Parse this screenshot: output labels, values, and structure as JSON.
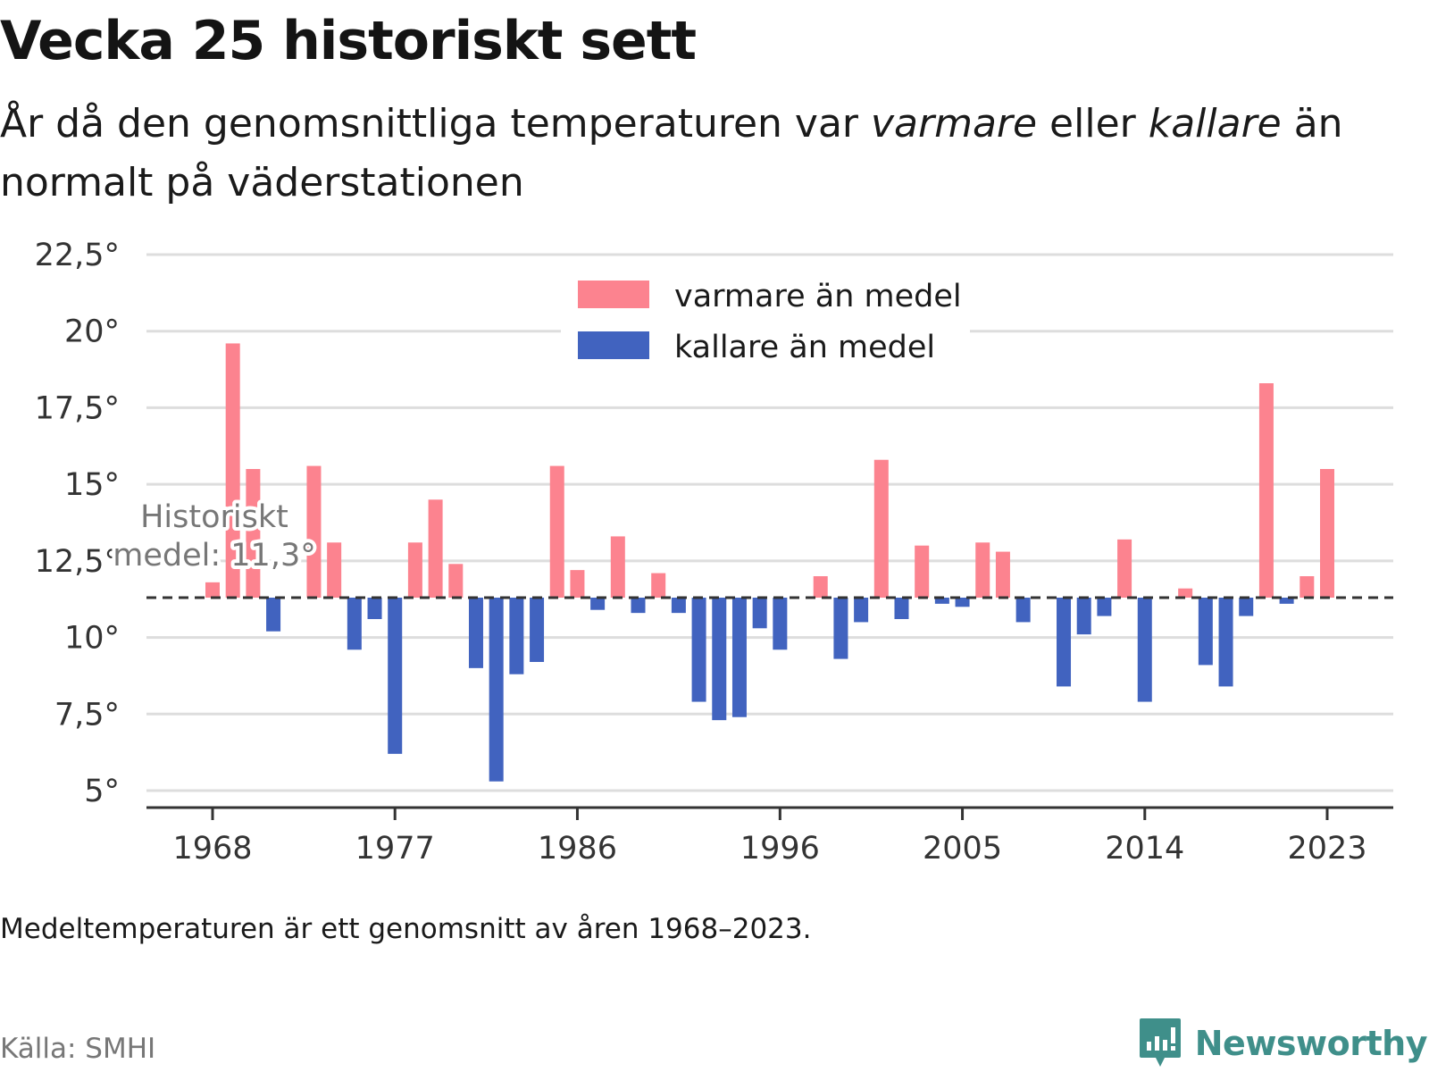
{
  "header": {
    "title": "Vecka 25 historiskt sett",
    "subtitle_part1": "År då den genomsnittliga temperaturen var ",
    "subtitle_em1": "varmare",
    "subtitle_part2": " eller ",
    "subtitle_em2": "kallare",
    "subtitle_part3": " än normalt på väderstationen"
  },
  "footer": {
    "note": "Medeltemperaturen är ett genomsnitt av åren 1968–2023.",
    "source": "Källa: SMHI",
    "brand": "Newsworthy"
  },
  "colors": {
    "warmer": "#fc838f",
    "colder": "#4163bf",
    "grid": "#dddddd",
    "brand": "#3f8f8a"
  },
  "chart_data": {
    "type": "bar",
    "baseline": 11.3,
    "baseline_label_line1": "Historiskt",
    "baseline_label_line2": "medel: 11,3°",
    "ylim": [
      5,
      22.5
    ],
    "yticks": [
      5,
      7.5,
      10,
      12.5,
      15,
      17.5,
      20,
      22.5
    ],
    "ytick_labels": [
      "5°",
      "7,5°",
      "10°",
      "12,5°",
      "15°",
      "17,5°",
      "20°",
      "22,5°"
    ],
    "xticks": [
      1968,
      1977,
      1986,
      1996,
      2005,
      2014,
      2023
    ],
    "xtick_labels": [
      "1968",
      "1977",
      "1986",
      "1996",
      "2005",
      "2014",
      "2023"
    ],
    "legend": [
      {
        "name": "varmare än medel",
        "color": "#fc838f"
      },
      {
        "name": "kallare än medel",
        "color": "#4163bf"
      }
    ],
    "legend_position": "top-center",
    "x": [
      1968,
      1969,
      1970,
      1971,
      1972,
      1973,
      1974,
      1975,
      1976,
      1977,
      1978,
      1979,
      1980,
      1981,
      1982,
      1983,
      1984,
      1985,
      1986,
      1987,
      1988,
      1989,
      1990,
      1991,
      1992,
      1993,
      1994,
      1995,
      1996,
      1997,
      1998,
      1999,
      2000,
      2001,
      2002,
      2003,
      2004,
      2005,
      2006,
      2007,
      2008,
      2009,
      2010,
      2011,
      2012,
      2013,
      2014,
      2015,
      2016,
      2017,
      2018,
      2019,
      2020,
      2021,
      2022,
      2023
    ],
    "values": [
      11.8,
      19.6,
      15.5,
      10.2,
      null,
      15.6,
      13.1,
      9.6,
      10.6,
      6.2,
      13.1,
      14.5,
      12.4,
      9.0,
      5.3,
      8.8,
      9.2,
      15.6,
      12.2,
      10.9,
      13.3,
      10.8,
      12.1,
      10.8,
      7.9,
      7.3,
      7.4,
      10.3,
      9.6,
      null,
      12.0,
      9.3,
      10.5,
      15.8,
      10.6,
      13.0,
      11.1,
      11.0,
      13.1,
      12.8,
      10.5,
      null,
      8.4,
      10.1,
      10.7,
      13.2,
      7.9,
      null,
      11.6,
      9.1,
      8.4,
      10.7,
      18.3,
      11.1,
      12.0,
      15.5
    ]
  }
}
